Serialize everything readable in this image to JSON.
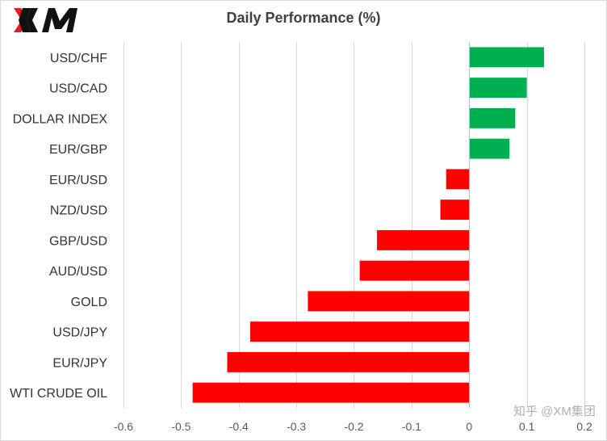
{
  "header": {
    "logo_text": "XM",
    "title": "Daily Performance  (%)"
  },
  "watermark": {
    "text": "知乎 @XM集团"
  },
  "chart_data": {
    "type": "bar",
    "orientation": "horizontal",
    "title": "Daily Performance  (%)",
    "xlabel": "",
    "ylabel": "",
    "xlim": [
      -0.6,
      0.2
    ],
    "x_ticks": [
      -0.6,
      -0.5,
      -0.4,
      -0.3,
      -0.2,
      -0.1,
      0,
      0.1,
      0.2
    ],
    "x_tick_labels": [
      "-0.6",
      "-0.5",
      "-0.4",
      "-0.3",
      "-0.2",
      "-0.1",
      "0",
      "0.1",
      "0.2"
    ],
    "grid": "vertical",
    "legend": "none",
    "colors": {
      "positive": "#00b050",
      "negative": "#ff0000",
      "grid": "#d9d9d9",
      "axis": "#bfbfbf"
    },
    "categories": [
      "USD/CHF",
      "USD/CAD",
      "DOLLAR INDEX",
      "EUR/GBP",
      "EUR/USD",
      "NZD/USD",
      "GBP/USD",
      "AUD/USD",
      "GOLD",
      "USD/JPY",
      "EUR/JPY",
      "WTI CRUDE OIL"
    ],
    "values": [
      0.13,
      0.1,
      0.08,
      0.07,
      -0.04,
      -0.05,
      -0.16,
      -0.19,
      -0.28,
      -0.38,
      -0.42,
      -0.48
    ]
  }
}
